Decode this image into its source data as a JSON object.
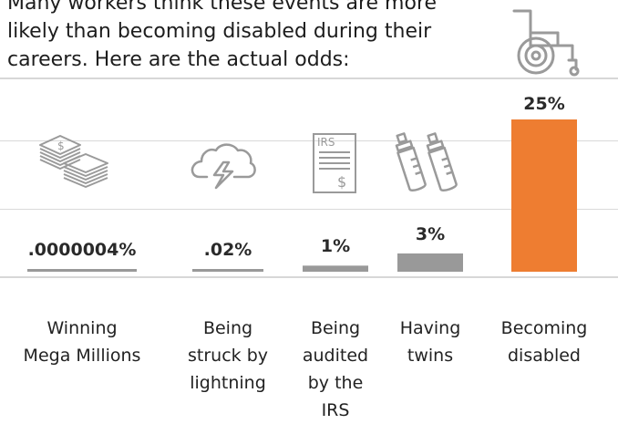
{
  "intro": {
    "line1": "Many workers think these events are more",
    "line2": "likely than becoming disabled during their",
    "line3": "careers. Here are the actual odds:"
  },
  "colors": {
    "highlight": "#ee7d31",
    "neutral": "#999999",
    "icon": "#9a9a9a"
  },
  "icons": [
    "wheelchair-icon",
    "money-stack-icon",
    "lightning-cloud-icon",
    "irs-document-icon",
    "baby-bottles-icon"
  ],
  "chart_data": {
    "type": "bar",
    "categories": [
      "Winning Mega Millions",
      "Being struck by lightning",
      "Being audited by the IRS",
      "Having twins",
      "Becoming disabled"
    ],
    "category_lines": [
      [
        "Winning",
        "Mega Millions"
      ],
      [
        "Being",
        "struck by",
        "lightning"
      ],
      [
        "Being",
        "audited",
        "by the",
        "IRS"
      ],
      [
        "Having",
        "twins"
      ],
      [
        "Becoming",
        "disabled"
      ]
    ],
    "values": [
      4e-07,
      0.02,
      1,
      3,
      25
    ],
    "value_labels": [
      ".0000004%",
      ".02%",
      "1%",
      "3%",
      "25%"
    ],
    "ylim": [
      0,
      25
    ],
    "highlight_index": 4
  }
}
